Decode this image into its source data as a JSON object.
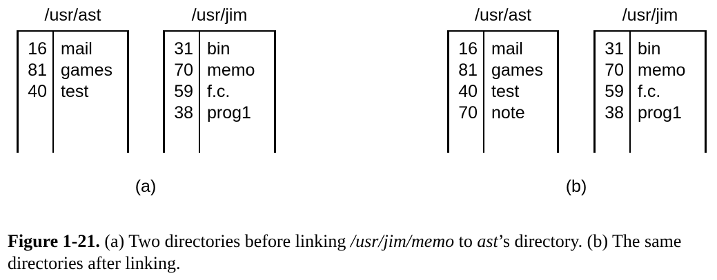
{
  "panels": [
    {
      "label": "(a)",
      "directories": [
        {
          "title": "/usr/ast",
          "entries": [
            {
              "inode": "16",
              "name": "mail"
            },
            {
              "inode": "81",
              "name": "games"
            },
            {
              "inode": "40",
              "name": "test"
            }
          ]
        },
        {
          "title": "/usr/jim",
          "entries": [
            {
              "inode": "31",
              "name": "bin"
            },
            {
              "inode": "70",
              "name": "memo"
            },
            {
              "inode": "59",
              "name": "f.c."
            },
            {
              "inode": "38",
              "name": "prog1"
            }
          ]
        }
      ]
    },
    {
      "label": "(b)",
      "directories": [
        {
          "title": "/usr/ast",
          "entries": [
            {
              "inode": "16",
              "name": "mail"
            },
            {
              "inode": "81",
              "name": "games"
            },
            {
              "inode": "40",
              "name": "test"
            },
            {
              "inode": "70",
              "name": "note"
            }
          ]
        },
        {
          "title": "/usr/jim",
          "entries": [
            {
              "inode": "31",
              "name": "bin"
            },
            {
              "inode": "70",
              "name": "memo"
            },
            {
              "inode": "59",
              "name": "f.c."
            },
            {
              "inode": "38",
              "name": "prog1"
            }
          ]
        }
      ]
    }
  ],
  "caption": {
    "figure_label": "Figure 1-21.",
    "text_1": " (a) Two directories before linking ",
    "path_italic": "/usr/jim/memo",
    "text_2": " to ",
    "ast_italic": "ast",
    "text_3": "’s directory. (b) The same directories after linking."
  }
}
